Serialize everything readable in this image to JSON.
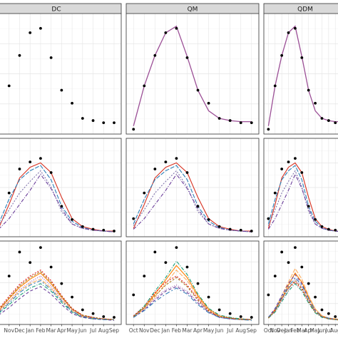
{
  "facets": [
    "DC",
    "QM",
    "QDM"
  ],
  "month_labels": [
    "Oct",
    "Nov",
    "Dec",
    "Jan",
    "Feb",
    "Mar",
    "Apr",
    "May",
    "Jun",
    "Jul",
    "Aug",
    "Sep"
  ],
  "colors": {
    "panel_bg": "#ffffff",
    "panel_border": "#333333",
    "grid_major": "#e5e5e5",
    "grid_minor": "#f2f2f2",
    "strip_bg": "#d9d9d9",
    "observed": "#000000",
    "row1_line": "#9b4f96",
    "row2": [
      "#d7301f",
      "#2c7fb8",
      "#8073ac",
      "#6a3d9a"
    ],
    "row3": [
      "#ff7f00",
      "#fdae61",
      "#e31a1c",
      "#1b9e77",
      "#6a3d9a",
      "#984ea3",
      "#377eb8",
      "#a6761d",
      "#e7298a",
      "#66a61e"
    ]
  },
  "chart_data": {
    "type": "line",
    "x": [
      "Oct",
      "Nov",
      "Dec",
      "Jan",
      "Feb",
      "Mar",
      "Apr",
      "May",
      "Jun",
      "Jul",
      "Aug",
      "Sep"
    ],
    "layout": "3 rows x 3 facet columns (DC, QM, QDM)",
    "grid": true,
    "rows": [
      {
        "ylim": [
          0,
          1
        ],
        "observed": [
          0.0,
          0.4,
          0.68,
          0.89,
          0.93,
          0.66,
          0.36,
          0.24,
          0.1,
          0.08,
          0.06,
          0.06
        ],
        "series_by_facet": {
          "DC": [],
          "QM": [
            {
              "values": [
                0.03,
                0.4,
                0.68,
                0.89,
                0.95,
                0.67,
                0.36,
                0.17,
                0.1,
                0.08,
                0.07,
                0.07
              ]
            }
          ],
          "QDM": [
            {
              "values": [
                0.03,
                0.4,
                0.68,
                0.89,
                0.95,
                0.67,
                0.36,
                0.17,
                0.1,
                0.08,
                0.07,
                0.07
              ]
            }
          ]
        }
      },
      {
        "ylim": [
          0,
          1
        ],
        "observed": [
          0.16,
          0.45,
          0.72,
          0.8,
          0.84,
          0.68,
          0.3,
          0.15,
          0.07,
          0.04,
          0.03,
          0.02
        ],
        "series_by_facet": {
          "DC": [
            {
              "values": [
                0.05,
                0.32,
                0.62,
                0.74,
                0.79,
                0.68,
                0.4,
                0.16,
                0.07,
                0.04,
                0.02,
                0.02
              ]
            },
            {
              "values": [
                0.1,
                0.38,
                0.6,
                0.7,
                0.76,
                0.6,
                0.3,
                0.13,
                0.06,
                0.03,
                0.02,
                0.01
              ]
            },
            {
              "values": [
                0.08,
                0.26,
                0.45,
                0.58,
                0.7,
                0.52,
                0.24,
                0.1,
                0.05,
                0.03,
                0.02,
                0.01
              ]
            },
            {
              "values": [
                0.04,
                0.16,
                0.32,
                0.48,
                0.66,
                0.5,
                0.27,
                0.1,
                0.05,
                0.03,
                0.02,
                0.01
              ]
            }
          ],
          "QM": [
            {
              "values": [
                0.05,
                0.32,
                0.62,
                0.74,
                0.79,
                0.68,
                0.4,
                0.16,
                0.07,
                0.04,
                0.02,
                0.02
              ]
            },
            {
              "values": [
                0.1,
                0.38,
                0.6,
                0.7,
                0.76,
                0.6,
                0.3,
                0.13,
                0.06,
                0.03,
                0.02,
                0.01
              ]
            },
            {
              "values": [
                0.08,
                0.26,
                0.45,
                0.58,
                0.7,
                0.52,
                0.24,
                0.1,
                0.05,
                0.03,
                0.02,
                0.01
              ]
            },
            {
              "values": [
                0.04,
                0.16,
                0.32,
                0.48,
                0.66,
                0.5,
                0.27,
                0.1,
                0.05,
                0.03,
                0.02,
                0.01
              ]
            }
          ],
          "QDM": [
            {
              "values": [
                0.05,
                0.32,
                0.62,
                0.74,
                0.79,
                0.68,
                0.4,
                0.16,
                0.07,
                0.04,
                0.02,
                0.02
              ]
            },
            {
              "values": [
                0.1,
                0.38,
                0.6,
                0.7,
                0.76,
                0.6,
                0.3,
                0.13,
                0.06,
                0.03,
                0.02,
                0.01
              ]
            },
            {
              "values": [
                0.08,
                0.26,
                0.45,
                0.58,
                0.7,
                0.52,
                0.24,
                0.1,
                0.05,
                0.03,
                0.02,
                0.01
              ]
            },
            {
              "values": [
                0.04,
                0.16,
                0.32,
                0.48,
                0.66,
                0.5,
                0.27,
                0.1,
                0.05,
                0.03,
                0.02,
                0.01
              ]
            }
          ]
        }
      },
      {
        "ylim": [
          0,
          1
        ],
        "observed": [
          0.35,
          0.6,
          0.92,
          0.78,
          0.98,
          0.72,
          0.5,
          0.32,
          0.15,
          0.1,
          0.06,
          0.05
        ],
        "series_by_facet": {
          "DC": [
            {
              "values": [
                0.14,
                0.3,
                0.45,
                0.56,
                0.64,
                0.5,
                0.32,
                0.16,
                0.07,
                0.04,
                0.03,
                0.02
              ]
            },
            {
              "values": [
                0.12,
                0.26,
                0.4,
                0.5,
                0.56,
                0.44,
                0.28,
                0.14,
                0.06,
                0.04,
                0.03,
                0.02
              ]
            },
            {
              "values": [
                0.16,
                0.33,
                0.49,
                0.6,
                0.68,
                0.54,
                0.34,
                0.17,
                0.08,
                0.05,
                0.03,
                0.02
              ]
            },
            {
              "values": [
                0.1,
                0.22,
                0.34,
                0.44,
                0.5,
                0.4,
                0.25,
                0.12,
                0.05,
                0.03,
                0.02,
                0.02
              ]
            },
            {
              "values": [
                0.08,
                0.18,
                0.3,
                0.4,
                0.46,
                0.36,
                0.22,
                0.1,
                0.05,
                0.03,
                0.02,
                0.01
              ]
            },
            {
              "values": [
                0.13,
                0.27,
                0.42,
                0.52,
                0.6,
                0.47,
                0.3,
                0.15,
                0.07,
                0.04,
                0.03,
                0.02
              ]
            },
            {
              "values": [
                0.11,
                0.24,
                0.38,
                0.48,
                0.54,
                0.42,
                0.27,
                0.13,
                0.06,
                0.04,
                0.02,
                0.02
              ]
            },
            {
              "values": [
                0.15,
                0.31,
                0.47,
                0.58,
                0.66,
                0.52,
                0.33,
                0.16,
                0.08,
                0.05,
                0.03,
                0.02
              ]
            }
          ],
          "QM": [
            {
              "values": [
                0.06,
                0.18,
                0.36,
                0.55,
                0.74,
                0.58,
                0.34,
                0.16,
                0.07,
                0.04,
                0.03,
                0.02
              ]
            },
            {
              "values": [
                0.05,
                0.16,
                0.32,
                0.5,
                0.68,
                0.54,
                0.32,
                0.15,
                0.07,
                0.04,
                0.03,
                0.02
              ]
            },
            {
              "values": [
                0.07,
                0.2,
                0.38,
                0.52,
                0.6,
                0.48,
                0.3,
                0.14,
                0.06,
                0.04,
                0.03,
                0.02
              ]
            },
            {
              "values": [
                0.06,
                0.2,
                0.4,
                0.58,
                0.8,
                0.62,
                0.36,
                0.17,
                0.08,
                0.05,
                0.03,
                0.02
              ]
            },
            {
              "values": [
                0.05,
                0.15,
                0.28,
                0.4,
                0.46,
                0.38,
                0.24,
                0.12,
                0.05,
                0.03,
                0.02,
                0.02
              ]
            },
            {
              "values": [
                0.06,
                0.17,
                0.3,
                0.42,
                0.48,
                0.4,
                0.26,
                0.12,
                0.06,
                0.03,
                0.02,
                0.02
              ]
            },
            {
              "values": [
                0.05,
                0.14,
                0.26,
                0.36,
                0.44,
                0.36,
                0.22,
                0.11,
                0.05,
                0.03,
                0.02,
                0.01
              ]
            },
            {
              "values": [
                0.06,
                0.18,
                0.34,
                0.48,
                0.58,
                0.46,
                0.28,
                0.13,
                0.06,
                0.04,
                0.02,
                0.02
              ]
            }
          ],
          "QDM": [
            {
              "values": [
                0.04,
                0.14,
                0.3,
                0.48,
                0.64,
                0.52,
                0.32,
                0.16,
                0.07,
                0.04,
                0.03,
                0.02
              ]
            },
            {
              "values": [
                0.05,
                0.16,
                0.34,
                0.52,
                0.7,
                0.56,
                0.34,
                0.16,
                0.07,
                0.04,
                0.03,
                0.02
              ]
            },
            {
              "values": [
                0.05,
                0.15,
                0.3,
                0.44,
                0.52,
                0.42,
                0.26,
                0.12,
                0.06,
                0.03,
                0.02,
                0.02
              ]
            },
            {
              "values": [
                0.04,
                0.12,
                0.26,
                0.4,
                0.5,
                0.4,
                0.24,
                0.11,
                0.05,
                0.03,
                0.02,
                0.01
              ]
            },
            {
              "values": [
                0.05,
                0.17,
                0.34,
                0.5,
                0.62,
                0.5,
                0.3,
                0.14,
                0.06,
                0.04,
                0.02,
                0.02
              ]
            },
            {
              "values": [
                0.04,
                0.13,
                0.28,
                0.42,
                0.56,
                0.46,
                0.28,
                0.13,
                0.06,
                0.03,
                0.02,
                0.02
              ]
            },
            {
              "values": [
                0.05,
                0.15,
                0.32,
                0.46,
                0.58,
                0.48,
                0.3,
                0.14,
                0.06,
                0.04,
                0.02,
                0.02
              ]
            },
            {
              "values": [
                0.04,
                0.14,
                0.3,
                0.44,
                0.54,
                0.44,
                0.27,
                0.12,
                0.06,
                0.03,
                0.02,
                0.01
              ]
            }
          ]
        }
      }
    ]
  }
}
